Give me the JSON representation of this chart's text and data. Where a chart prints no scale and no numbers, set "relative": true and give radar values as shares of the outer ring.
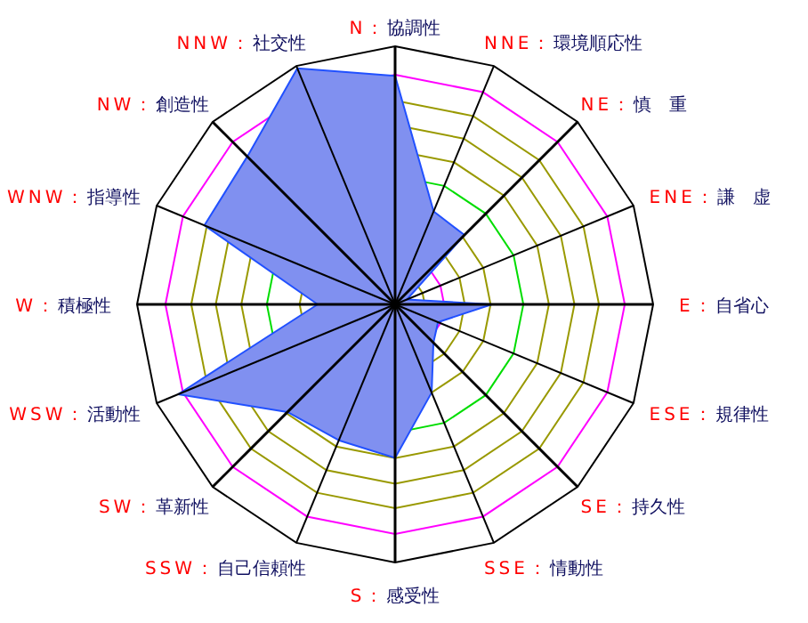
{
  "chart_data": {
    "type": "radar",
    "relative": true,
    "grid": true,
    "categories": [
      "N：協調性",
      "NNE：環境順応性",
      "NE：慎　重",
      "ENE：謙　虚",
      "E：自省心",
      "ESE：規律性",
      "SE：持久性",
      "SSE：情動性",
      "S：感受性",
      "SSW：自己信頼性",
      "SW：革新性",
      "WSW：活動性",
      "W：積極性",
      "WNW：指導性",
      "NW：創造性",
      "NNW：社交性"
    ],
    "series": [
      {
        "color": "#8090f0",
        "values": [
          0.885,
          0.39,
          0.38,
          0.05,
          0.375,
          0.18,
          0.21,
          0.37,
          0.595,
          0.57,
          0.59,
          0.91,
          0.3,
          0.8,
          0.81,
          0.99
        ]
      }
    ]
  }
}
